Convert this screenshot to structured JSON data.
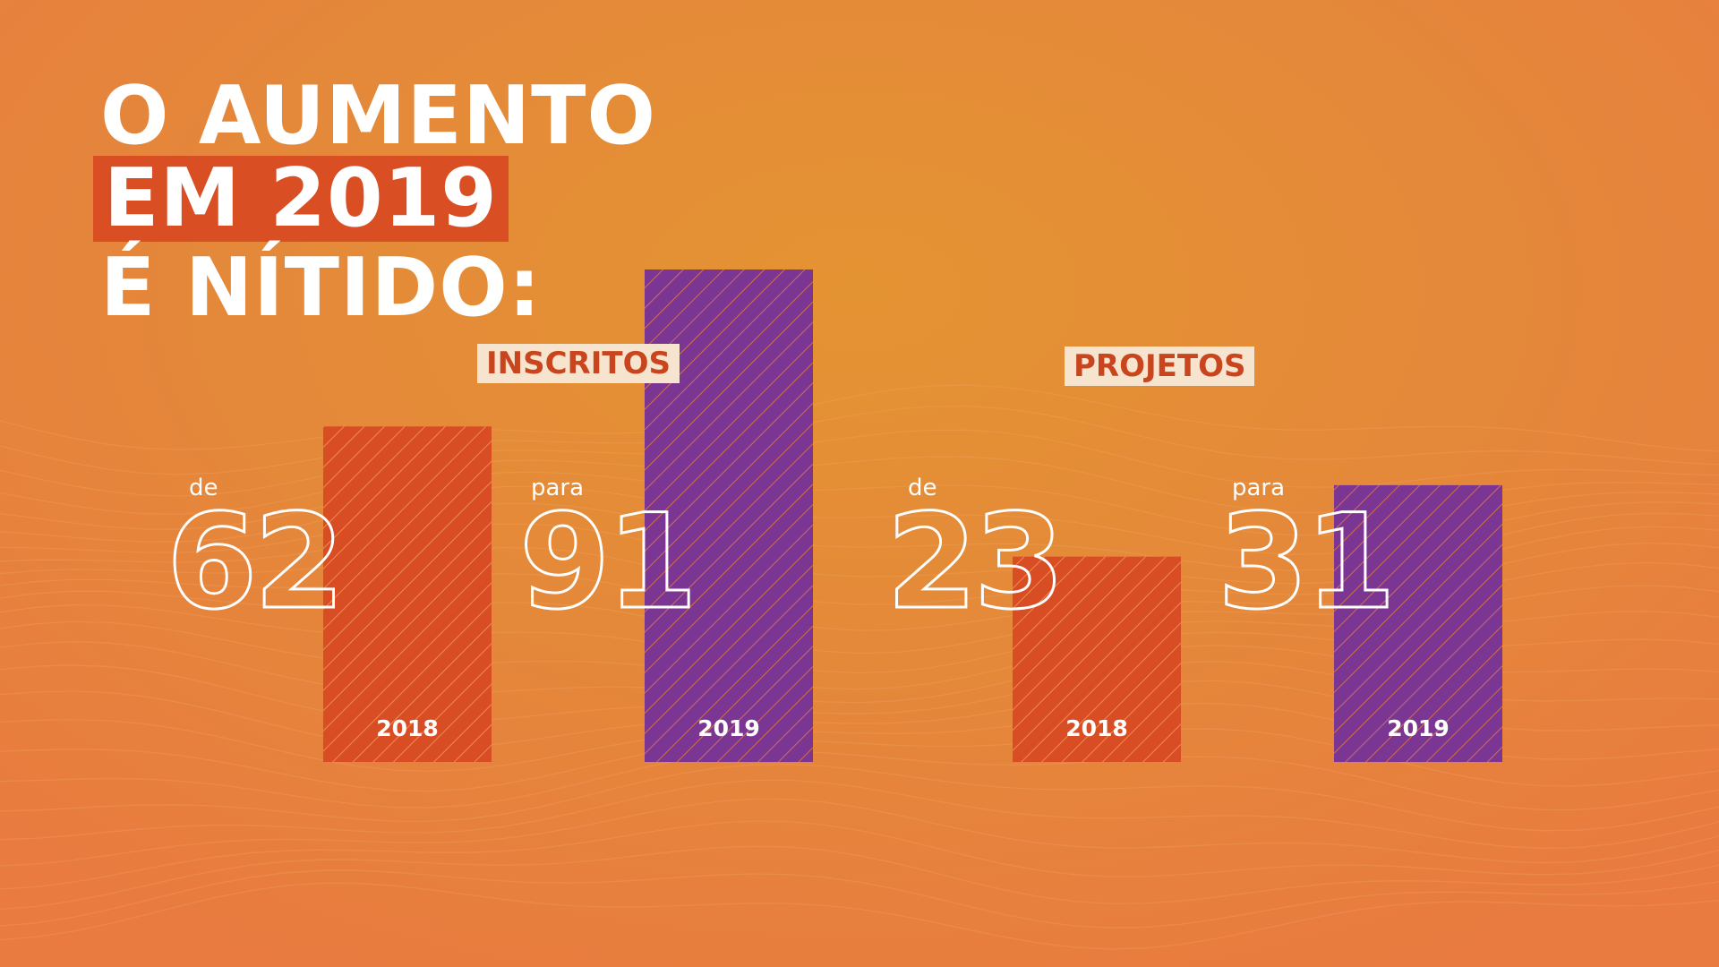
{
  "title": {
    "line1": "O AUMENTO",
    "line2": "EM 2019",
    "line3": "É NÍTIDO:"
  },
  "colors": {
    "bar_2018": "#d84d24",
    "bar_2019": "#7b3592",
    "highlight": "#d94e22",
    "label_bg": "#f7e4cf",
    "label_text": "#c9451d"
  },
  "chart_data": [
    {
      "type": "bar",
      "title": "INSCRITOS",
      "categories": [
        "2018",
        "2019"
      ],
      "values": [
        62,
        91
      ],
      "prefixes": [
        "de",
        "para"
      ],
      "value_labels": [
        "62",
        "91"
      ],
      "ylim": [
        0,
        91
      ],
      "grid": false
    },
    {
      "type": "bar",
      "title": "PROJETOS",
      "categories": [
        "2018",
        "2019"
      ],
      "values": [
        23,
        31
      ],
      "prefixes": [
        "de",
        "para"
      ],
      "value_labels": [
        "23",
        "31"
      ],
      "ylim": [
        0,
        31
      ],
      "grid": false
    }
  ]
}
